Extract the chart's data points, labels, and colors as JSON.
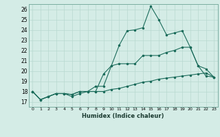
{
  "xlabel": "Humidex (Indice chaleur)",
  "ylabel": "",
  "background_color": "#d4ece6",
  "grid_color": "#b8d8d0",
  "line_color": "#1a6b5a",
  "xlim": [
    -0.5,
    23.5
  ],
  "ylim": [
    16.5,
    26.5
  ],
  "xticks": [
    0,
    1,
    2,
    3,
    4,
    5,
    6,
    7,
    8,
    9,
    10,
    11,
    12,
    13,
    14,
    15,
    16,
    17,
    18,
    19,
    20,
    21,
    22,
    23
  ],
  "yticks": [
    17,
    18,
    19,
    20,
    21,
    22,
    23,
    24,
    25,
    26
  ],
  "series": [
    [
      18.0,
      17.2,
      17.5,
      17.8,
      17.8,
      17.5,
      17.8,
      18.0,
      18.0,
      19.7,
      20.5,
      22.5,
      23.9,
      24.0,
      24.2,
      26.3,
      25.0,
      23.5,
      23.7,
      23.9,
      22.3,
      20.5,
      20.2,
      19.4
    ],
    [
      18.0,
      17.2,
      17.5,
      17.8,
      17.8,
      17.7,
      18.0,
      18.0,
      18.5,
      18.5,
      20.5,
      20.7,
      20.7,
      20.7,
      21.5,
      21.5,
      21.5,
      21.8,
      22.0,
      22.3,
      22.3,
      20.5,
      19.5,
      19.4
    ],
    [
      18.0,
      17.2,
      17.5,
      17.8,
      17.8,
      17.7,
      18.0,
      18.0,
      18.0,
      18.0,
      18.2,
      18.3,
      18.5,
      18.7,
      18.9,
      19.0,
      19.2,
      19.3,
      19.4,
      19.5,
      19.6,
      19.7,
      19.8,
      19.4
    ]
  ]
}
